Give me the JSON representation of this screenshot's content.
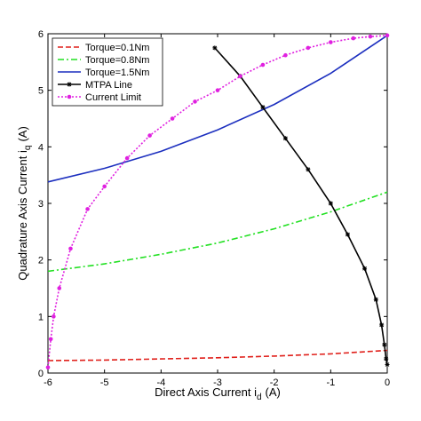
{
  "chart_data": {
    "type": "line",
    "xlabel": "Direct Axis Current i",
    "xlabel_sub": "d",
    "xlabel_unit": "(A)",
    "ylabel": "Quadrature Axis Current i",
    "ylabel_sub": "q",
    "ylabel_unit": "(A)",
    "xlim": [
      -6,
      0
    ],
    "ylim": [
      0,
      6
    ],
    "xticks": [
      -6,
      -5,
      -4,
      -3,
      -2,
      -1,
      0
    ],
    "yticks": [
      0,
      1,
      2,
      3,
      4,
      5,
      6
    ],
    "grid": false,
    "legend_position": "top-left",
    "series": [
      {
        "name": "Torque=0.1Nm",
        "color": "#e0201b",
        "style": "dashed",
        "x": [
          -6,
          -5,
          -4,
          -3,
          -2,
          -1,
          0
        ],
        "y": [
          0.22,
          0.23,
          0.25,
          0.27,
          0.3,
          0.34,
          0.4
        ]
      },
      {
        "name": "Torque=0.8Nm",
        "color": "#22e022",
        "style": "dashdot",
        "x": [
          -6,
          -5,
          -4,
          -3,
          -2,
          -1,
          0
        ],
        "y": [
          1.8,
          1.93,
          2.1,
          2.3,
          2.55,
          2.85,
          3.2
        ]
      },
      {
        "name": "Torque=1.5Nm",
        "color": "#1c2fbf",
        "style": "solid",
        "x": [
          -6,
          -5,
          -4,
          -3,
          -2,
          -1,
          0
        ],
        "y": [
          3.38,
          3.62,
          3.92,
          4.3,
          4.75,
          5.3,
          5.97
        ]
      },
      {
        "name": "MTPA Line",
        "color": "#000000",
        "style": "solid-star",
        "x": [
          -3.05,
          -2.6,
          -2.2,
          -1.8,
          -1.4,
          -1.0,
          -0.7,
          -0.4,
          -0.2,
          -0.1,
          -0.05,
          -0.02,
          0
        ],
        "y": [
          5.75,
          5.25,
          4.7,
          4.15,
          3.6,
          3.0,
          2.45,
          1.85,
          1.3,
          0.85,
          0.5,
          0.25,
          0.15
        ]
      },
      {
        "name": "Current Limit",
        "color": "#e020e0",
        "style": "dotted-dot",
        "x": [
          -6,
          -5.95,
          -5.9,
          -5.8,
          -5.6,
          -5.3,
          -5.0,
          -4.6,
          -4.2,
          -3.8,
          -3.4,
          -3.0,
          -2.6,
          -2.2,
          -1.8,
          -1.4,
          -1.0,
          -0.6,
          -0.3,
          0
        ],
        "y": [
          0.1,
          0.6,
          1.0,
          1.5,
          2.2,
          2.9,
          3.3,
          3.8,
          4.2,
          4.5,
          4.8,
          5.0,
          5.25,
          5.45,
          5.62,
          5.75,
          5.85,
          5.92,
          5.95,
          5.97
        ]
      }
    ]
  }
}
